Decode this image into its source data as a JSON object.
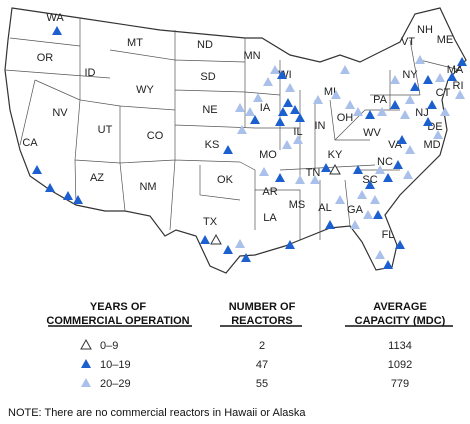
{
  "states": [
    "WA",
    "OR",
    "ID",
    "MT",
    "ND",
    "MN",
    "WI",
    "MI",
    "NY",
    "VT",
    "NH",
    "ME",
    "MA",
    "RI",
    "CT",
    "NJ",
    "PA",
    "OH",
    "IN",
    "IL",
    "IA",
    "NE",
    "SD",
    "WY",
    "NV",
    "CA",
    "UT",
    "CO",
    "KS",
    "MO",
    "KY",
    "WV",
    "VA",
    "DE",
    "MD",
    "NC",
    "TN",
    "SC",
    "GA",
    "AL",
    "MS",
    "AR",
    "OK",
    "TX",
    "LA",
    "FL",
    "AZ",
    "NM"
  ],
  "table": {
    "headers": [
      "YEARS OF COMMERCIAL OPERATION",
      "NUMBER OF REACTORS",
      "AVERAGE CAPACITY (MDC)"
    ],
    "rows": [
      [
        "0–9",
        "2",
        "1134"
      ],
      [
        "10–19",
        "47",
        "1092"
      ],
      [
        "20–29",
        "55",
        "779"
      ]
    ]
  },
  "note": "NOTE: There are no commercial reactors in Hawaii or Alaska"
}
